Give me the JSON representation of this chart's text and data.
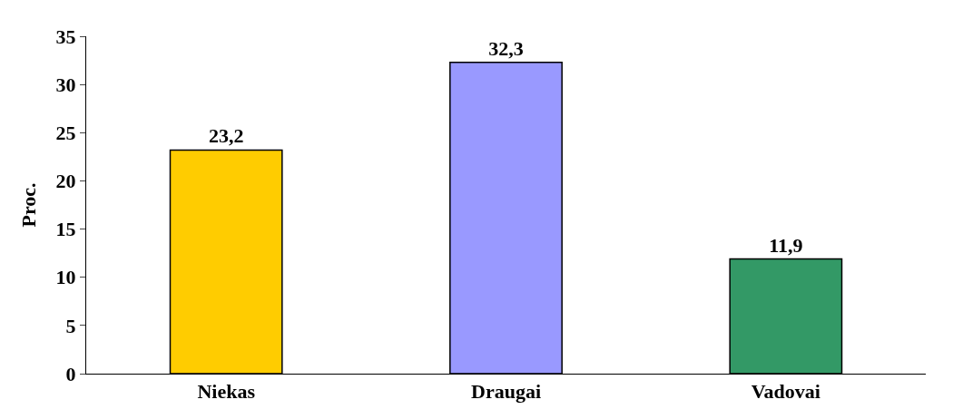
{
  "chart_data": {
    "type": "bar",
    "ylabel": "Proc.",
    "categories": [
      "Niekas",
      "Draugai",
      "Vadovai"
    ],
    "values": [
      23.2,
      32.3,
      11.9
    ],
    "value_labels": [
      "23,2",
      "32,3",
      "11,9"
    ],
    "colors": [
      "#ffcc00",
      "#9999ff",
      "#339966"
    ],
    "ylim": [
      0,
      35
    ],
    "yticks": [
      0,
      5,
      10,
      15,
      20,
      25,
      30,
      35
    ]
  }
}
